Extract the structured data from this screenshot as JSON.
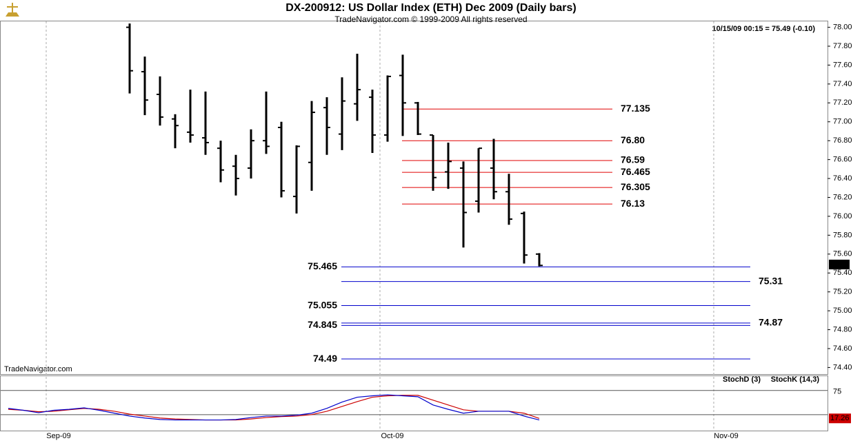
{
  "chart_data": [
    {
      "type": "ohlc",
      "title": "DX-200912:  US Dollar Index (ETH) Dec 2009  (Daily bars)",
      "subtitle": "TradeNavigator.com © 1999-2009 All rights reserved",
      "info": "10/15/09 00:15 = 75.49 (-0.10)",
      "watermark": "TradeNavigator.com",
      "color": "#000000",
      "categories": [
        null,
        null,
        null,
        null,
        null,
        null,
        null,
        null,
        null,
        null,
        null,
        null,
        null,
        null,
        null,
        null,
        null,
        null,
        null,
        null,
        null,
        null,
        null,
        null,
        null,
        null,
        null,
        null
      ],
      "open": [
        78.0,
        77.53,
        77.29,
        77.03,
        76.89,
        76.83,
        76.72,
        76.53,
        76.51,
        76.8,
        76.94,
        76.21,
        76.57,
        77.15,
        76.87,
        77.19,
        77.26,
        76.86,
        77.49,
        77.2,
        76.86,
        76.47,
        76.51,
        76.16,
        76.51,
        76.26,
        76.03,
        75.6
      ],
      "high": [
        78.04,
        77.69,
        77.48,
        77.08,
        77.34,
        77.32,
        76.8,
        76.65,
        76.92,
        77.32,
        77.0,
        76.75,
        77.22,
        77.26,
        77.47,
        77.72,
        77.34,
        77.49,
        77.71,
        77.21,
        76.86,
        76.78,
        76.58,
        76.72,
        76.82,
        76.45,
        76.05,
        75.61
      ],
      "low": [
        77.3,
        77.07,
        76.96,
        76.72,
        76.78,
        76.65,
        76.36,
        76.22,
        76.4,
        76.66,
        76.2,
        76.03,
        76.27,
        76.65,
        76.7,
        77.01,
        76.67,
        76.79,
        76.85,
        76.86,
        76.27,
        76.29,
        75.67,
        76.04,
        76.18,
        75.91,
        75.5,
        75.47
      ],
      "close": [
        77.54,
        77.23,
        77.05,
        76.96,
        76.86,
        76.78,
        76.49,
        76.4,
        76.8,
        76.74,
        76.27,
        76.74,
        77.1,
        76.94,
        77.22,
        77.34,
        76.86,
        77.48,
        77.2,
        76.87,
        76.41,
        76.58,
        76.04,
        76.72,
        76.26,
        75.97,
        75.59,
        75.48
      ],
      "last_value": 75.49,
      "ylim": [
        74.33,
        78.07
      ],
      "yticks": [
        {
          "value": 74.4,
          "label": "74.40"
        },
        {
          "value": 74.6,
          "label": "74.60"
        },
        {
          "value": 74.8,
          "label": "74.80"
        },
        {
          "value": 75.0,
          "label": "75.00"
        },
        {
          "value": 75.2,
          "label": "75.20"
        },
        {
          "value": 75.4,
          "label": "75.40"
        },
        {
          "value": 75.6,
          "label": "75.60"
        },
        {
          "value": 75.8,
          "label": "75.80"
        },
        {
          "value": 76.0,
          "label": "76.00"
        },
        {
          "value": 76.2,
          "label": "76.20"
        },
        {
          "value": 76.4,
          "label": "76.40"
        },
        {
          "value": 76.6,
          "label": "76.60"
        },
        {
          "value": 76.8,
          "label": "76.80"
        },
        {
          "value": 77.0,
          "label": "77.00"
        },
        {
          "value": 77.2,
          "label": "77.20"
        },
        {
          "value": 77.4,
          "label": "77.40"
        },
        {
          "value": 77.6,
          "label": "77.60"
        },
        {
          "value": 77.8,
          "label": "77.80"
        },
        {
          "value": 78.0,
          "label": "78.00"
        }
      ],
      "x_labels": [
        "Sep-09",
        "Oct-09",
        "Nov-09"
      ],
      "resistance": {
        "color": "#e00000",
        "values": [
          77.135,
          76.8,
          76.59,
          76.465,
          76.305,
          76.13
        ],
        "value_labels": [
          "77.135",
          "76.80",
          "76.59",
          "76.465",
          "76.305",
          "76.13"
        ]
      },
      "support": {
        "color": "#0000cc",
        "values": [
          75.465,
          75.31,
          75.055,
          74.87,
          74.845,
          74.49
        ],
        "value_labels": [
          "75.465",
          "75.31",
          "75.055",
          "74.87",
          "74.845",
          "74.49"
        ],
        "label_side": [
          "left",
          "right",
          "left",
          "right",
          "left",
          "left"
        ]
      }
    },
    {
      "type": "line",
      "ylim": [
        -8,
        106
      ],
      "yticks": [
        75
      ],
      "reference_lines": [
        25
      ],
      "series": [
        {
          "name": "StochD (3)",
          "color": "#cc0000",
          "values": [
            36,
            34,
            31,
            32,
            35,
            38,
            36,
            32,
            26,
            22,
            18,
            16,
            15,
            14,
            14,
            14,
            16,
            19,
            21,
            22,
            25,
            32,
            42,
            52,
            61,
            64,
            65,
            65,
            55,
            45,
            35,
            32,
            32,
            32,
            28,
            17.26
          ]
        },
        {
          "name": "StochK (14,3)",
          "color": "#0000cc",
          "values": [
            38,
            34,
            29,
            34,
            36,
            39,
            34,
            28,
            22,
            18,
            15,
            14,
            14,
            14,
            14,
            15,
            19,
            22,
            22,
            24,
            28,
            38,
            51,
            61,
            64,
            66,
            64,
            62,
            45,
            36,
            28,
            32,
            32,
            32,
            22,
            14
          ]
        }
      ],
      "last_value": 17.26
    }
  ]
}
